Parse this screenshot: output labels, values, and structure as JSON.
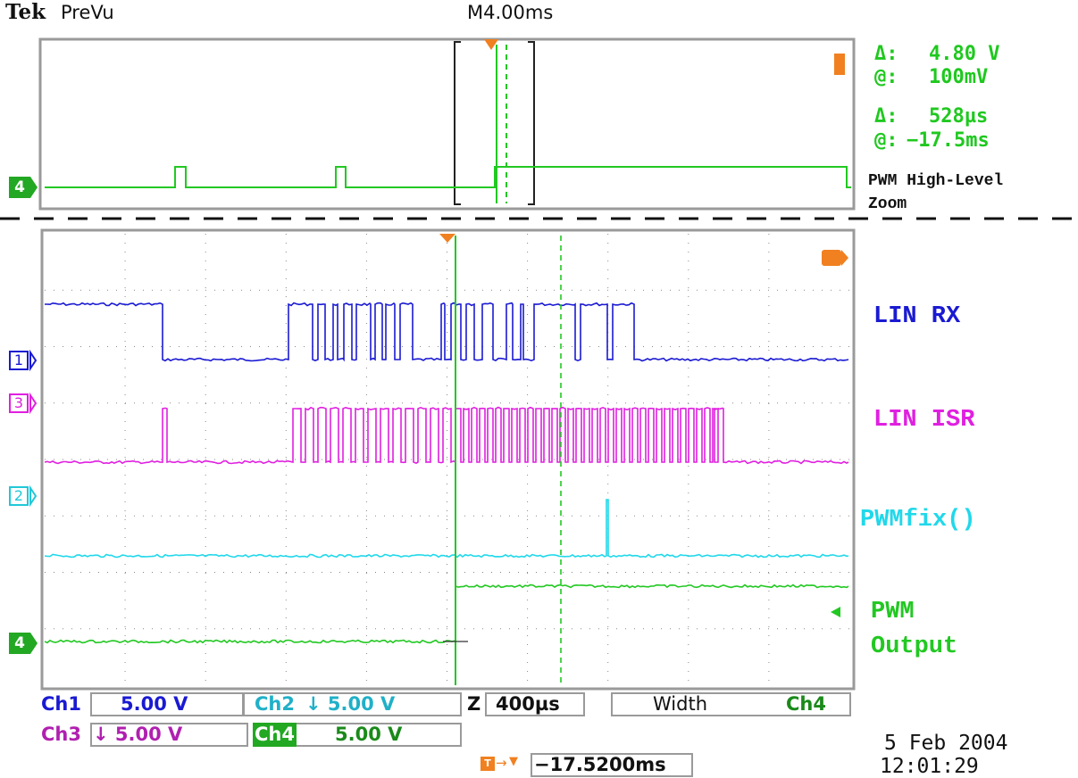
{
  "header": {
    "brand": "Tek",
    "mode": "PreVu",
    "timebase": "M4.00ms"
  },
  "measurements": [
    {
      "symbol": "Δ:",
      "value": "4.80 V"
    },
    {
      "symbol": "@:",
      "value": "100mV"
    },
    {
      "symbol": "Δ:",
      "value": "528µs"
    },
    {
      "symbol": "@:",
      "value": "−17.5ms"
    }
  ],
  "annotation": {
    "line1": "PWM High-Level",
    "line2": "Zoom"
  },
  "channels": {
    "ch1": {
      "marker": "1",
      "label": "LIN RX",
      "color": "#1a1ad2"
    },
    "ch3": {
      "marker": "3",
      "label": "LIN ISR",
      "color": "#e020e0"
    },
    "ch2": {
      "marker": "2",
      "label": "PWMfix()",
      "color": "#20d8ea"
    },
    "ch4": {
      "marker": "4",
      "label_line1": "PWM",
      "label_line2": "Output",
      "color": "#22c822"
    }
  },
  "readouts": {
    "ch1_name": "Ch1",
    "ch1_scale": "5.00 V",
    "ch2_name": "Ch2",
    "ch2_scale": "↓ 5.00 V",
    "ch3_name": "Ch3",
    "ch3_scale": "↓ 5.00 V",
    "ch4_name": "Ch4",
    "ch4_scale": "5.00 V",
    "zoom_prefix": "Z",
    "zoom_scale": "400µs",
    "measure_type": "Width",
    "measure_channel": "Ch4",
    "trigger_position": "−17.5200ms"
  },
  "datetime": {
    "date": "5 Feb 2004",
    "time": "12:01:29"
  },
  "colors": {
    "trigger": "#f08020",
    "grid": "#888888",
    "frame": "#9a9a9a"
  }
}
